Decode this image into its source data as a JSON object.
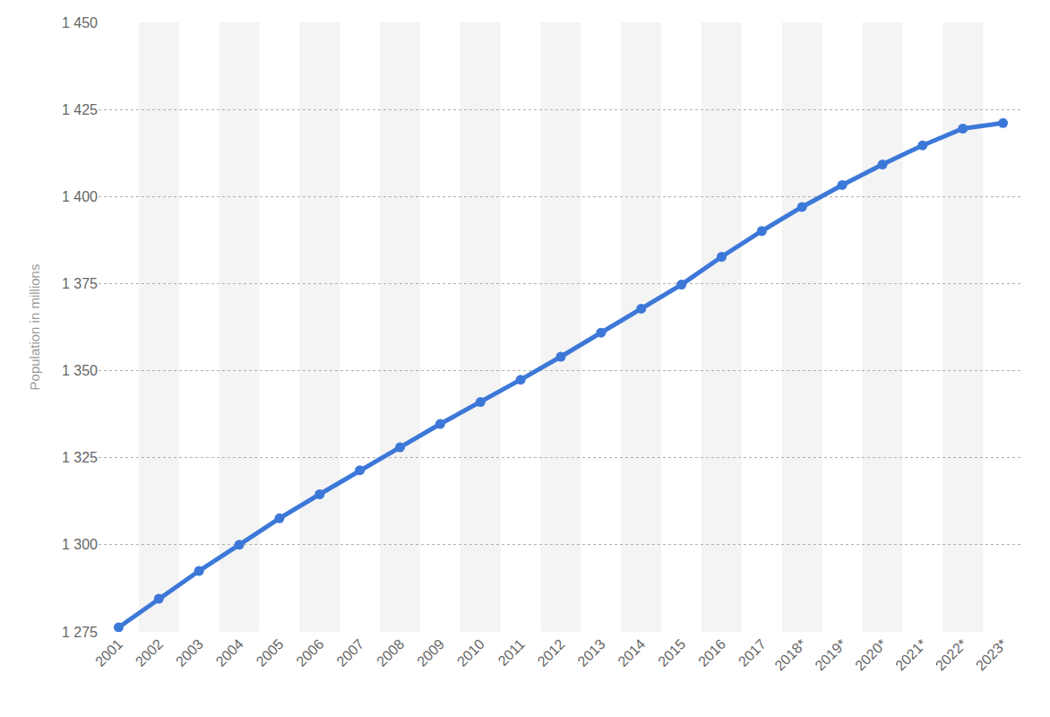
{
  "chart_data": {
    "type": "line",
    "y_label": "Population in millions",
    "categories": [
      "2001",
      "2002",
      "2003",
      "2004",
      "2005",
      "2006",
      "2007",
      "2008",
      "2009",
      "2010",
      "2011",
      "2012",
      "2013",
      "2014",
      "2015",
      "2016",
      "2017",
      "2018*",
      "2019*",
      "2020*",
      "2021*",
      "2022*",
      "2023*"
    ],
    "values": [
      1276.3,
      1284.5,
      1292.5,
      1300.0,
      1307.6,
      1314.5,
      1321.4,
      1328.0,
      1334.7,
      1341.0,
      1347.4,
      1354.0,
      1360.9,
      1367.8,
      1374.7,
      1382.7,
      1390.1,
      1397.0,
      1403.3,
      1409.2,
      1414.7,
      1419.5,
      1421.1
    ],
    "color": "#3c78d8",
    "marker": "circle",
    "line_style": "solid",
    "ylim": [
      1275,
      1450
    ],
    "yticks": [
      {
        "value": 1275,
        "label": "1 275"
      },
      {
        "value": 1300,
        "label": "1 300"
      },
      {
        "value": 1325,
        "label": "1 325"
      },
      {
        "value": 1350,
        "label": "1 350"
      },
      {
        "value": 1375,
        "label": "1 375"
      },
      {
        "value": 1400,
        "label": "1 400"
      },
      {
        "value": 1425,
        "label": "1 425"
      },
      {
        "value": 1450,
        "label": "1 450"
      }
    ],
    "grid": true
  }
}
